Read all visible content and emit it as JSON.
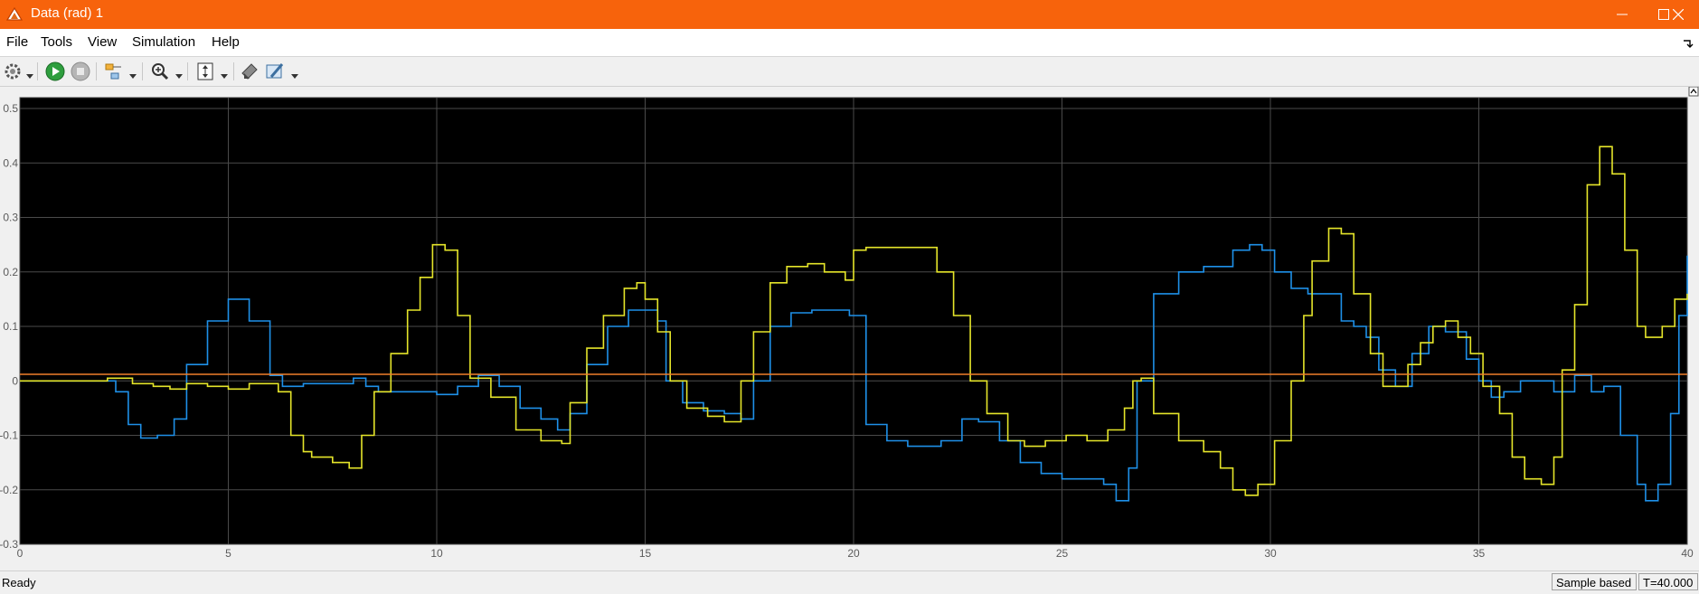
{
  "window": {
    "title": "Data (rad) 1"
  },
  "menu": {
    "items": [
      "File",
      "Tools",
      "View",
      "Simulation",
      "Help"
    ]
  },
  "toolbar": {
    "icons": [
      "gear-icon",
      "run-icon",
      "stop-icon",
      "signal-select-icon",
      "zoom-icon",
      "autoscale-icon",
      "layout-icon",
      "highlight-icon"
    ]
  },
  "status": {
    "ready": "Ready",
    "mode": "Sample based",
    "time": "T=40.000"
  },
  "colors": {
    "titlebar": "#f7630c",
    "plot_bg": "#000000",
    "grid": "#4a4a4a",
    "series1": "#1e90e8",
    "series2": "#e5e52a",
    "series3": "#f07f2a"
  },
  "chart_data": {
    "type": "line",
    "title": "",
    "xlabel": "",
    "ylabel": "",
    "xlim": [
      0,
      40
    ],
    "ylim": [
      -0.3,
      0.52
    ],
    "xticks": [
      0,
      5,
      10,
      15,
      20,
      25,
      30,
      35,
      40
    ],
    "yticks": [
      -0.3,
      -0.2,
      -0.1,
      0,
      0.1,
      0.2,
      0.3,
      0.4,
      0.5
    ],
    "xtick_labels": [
      "0",
      "5",
      "10",
      "15",
      "20",
      "25",
      "30",
      "35",
      "40"
    ],
    "ytick_labels": [
      "-0.3",
      "-0.2",
      "-0.1",
      "0",
      "0.1",
      "0.2",
      "0.3",
      "0.4",
      "0.5"
    ],
    "grid": true,
    "step": true,
    "series": [
      {
        "color": "#1e90e8",
        "x": [
          0,
          1.5,
          2,
          2.3,
          2.6,
          2.9,
          3.3,
          3.5,
          3.7,
          4,
          4.5,
          5,
          5.5,
          6,
          6.3,
          6.8,
          7.3,
          7.7,
          8,
          8.3,
          8.6,
          9,
          9.5,
          10,
          10.5,
          11,
          11.5,
          12,
          12.5,
          12.9,
          13.2,
          13.6,
          14.1,
          14.6,
          15,
          15.3,
          15.5,
          15.9,
          16.4,
          16.9,
          17.3,
          17.6,
          18,
          18.5,
          19,
          19.5,
          19.9,
          20.3,
          20.8,
          21.3,
          21.7,
          22.1,
          22.6,
          23,
          23.5,
          24,
          24.5,
          25,
          25.5,
          26,
          26.3,
          26.6,
          26.8,
          27.2,
          27.8,
          28.4,
          29.1,
          29.5,
          29.8,
          30.1,
          30.5,
          30.9,
          31.2,
          31.7,
          32,
          32.3,
          32.6,
          33,
          33.4,
          33.8,
          34.2,
          34.7,
          35,
          35.3,
          35.6,
          36,
          36.4,
          36.8,
          37.3,
          37.7,
          38,
          38.4,
          38.8,
          39,
          39.3,
          39.6,
          39.8,
          40
        ],
        "y": [
          0,
          0,
          0,
          -0.02,
          -0.08,
          -0.105,
          -0.1,
          -0.1,
          -0.07,
          0.03,
          0.11,
          0.15,
          0.11,
          0.01,
          -0.01,
          -0.005,
          -0.005,
          -0.005,
          0.005,
          -0.01,
          -0.02,
          -0.02,
          -0.02,
          -0.025,
          -0.01,
          0.01,
          -0.01,
          -0.05,
          -0.07,
          -0.09,
          -0.06,
          0.03,
          0.1,
          0.13,
          0.13,
          0.11,
          0.0,
          -0.04,
          -0.055,
          -0.06,
          -0.07,
          0.0,
          0.1,
          0.125,
          0.13,
          0.13,
          0.12,
          -0.08,
          -0.11,
          -0.12,
          -0.12,
          -0.11,
          -0.07,
          -0.075,
          -0.11,
          -0.15,
          -0.17,
          -0.18,
          -0.18,
          -0.19,
          -0.22,
          -0.16,
          0.0,
          0.16,
          0.2,
          0.21,
          0.24,
          0.25,
          0.24,
          0.2,
          0.17,
          0.16,
          0.16,
          0.11,
          0.1,
          0.08,
          0.02,
          -0.01,
          0.05,
          0.1,
          0.09,
          0.04,
          0.0,
          -0.03,
          -0.02,
          0.0,
          0.0,
          -0.02,
          0.01,
          -0.02,
          -0.01,
          -0.1,
          -0.19,
          -0.22,
          -0.19,
          -0.06,
          0.12,
          0.23
        ]
      },
      {
        "color": "#e5e52a",
        "x": [
          0,
          1.5,
          2.1,
          2.4,
          2.7,
          3.2,
          3.6,
          4,
          4.5,
          5,
          5.5,
          5.9,
          6.2,
          6.5,
          6.8,
          7,
          7.5,
          7.9,
          8.2,
          8.5,
          8.9,
          9.3,
          9.6,
          9.9,
          10.2,
          10.5,
          10.8,
          11.3,
          11.9,
          12.5,
          13,
          13.2,
          13.6,
          14,
          14.5,
          14.8,
          15,
          15.3,
          15.6,
          16,
          16.5,
          16.9,
          17.3,
          17.6,
          18,
          18.4,
          18.9,
          19.3,
          19.8,
          20,
          20.3,
          21,
          21.6,
          22,
          22.4,
          22.8,
          23.2,
          23.7,
          24.1,
          24.6,
          25.1,
          25.6,
          26.1,
          26.5,
          26.7,
          26.9,
          27.2,
          27.8,
          28.4,
          28.8,
          29.1,
          29.4,
          29.7,
          30.1,
          30.5,
          30.8,
          31,
          31.4,
          31.7,
          32,
          32.4,
          32.7,
          33,
          33.3,
          33.6,
          33.9,
          34.2,
          34.5,
          34.8,
          35.1,
          35.5,
          35.8,
          36.1,
          36.5,
          36.8,
          37,
          37.3,
          37.6,
          37.9,
          38.2,
          38.5,
          38.8,
          39,
          39.4,
          39.7,
          40
        ],
        "y": [
          0,
          0,
          0.005,
          0.005,
          -0.005,
          -0.01,
          -0.015,
          -0.005,
          -0.01,
          -0.015,
          -0.005,
          -0.005,
          -0.02,
          -0.1,
          -0.13,
          -0.14,
          -0.15,
          -0.16,
          -0.1,
          -0.02,
          0.05,
          0.13,
          0.19,
          0.25,
          0.24,
          0.12,
          0.005,
          -0.03,
          -0.09,
          -0.11,
          -0.115,
          -0.04,
          0.06,
          0.12,
          0.17,
          0.18,
          0.15,
          0.09,
          0.0,
          -0.05,
          -0.065,
          -0.075,
          0.0,
          0.09,
          0.18,
          0.21,
          0.215,
          0.2,
          0.185,
          0.24,
          0.245,
          0.245,
          0.245,
          0.2,
          0.12,
          0.0,
          -0.06,
          -0.11,
          -0.12,
          -0.11,
          -0.1,
          -0.11,
          -0.09,
          -0.05,
          0.0,
          0.005,
          -0.06,
          -0.11,
          -0.13,
          -0.16,
          -0.2,
          -0.21,
          -0.19,
          -0.11,
          0.0,
          0.12,
          0.22,
          0.28,
          0.27,
          0.16,
          0.05,
          -0.01,
          -0.01,
          0.03,
          0.07,
          0.1,
          0.11,
          0.08,
          0.05,
          -0.01,
          -0.06,
          -0.14,
          -0.18,
          -0.19,
          -0.14,
          0.02,
          0.14,
          0.36,
          0.43,
          0.38,
          0.24,
          0.1,
          0.08,
          0.1,
          0.15,
          0.16
        ]
      },
      {
        "color": "#f07f2a",
        "x": [
          0,
          40
        ],
        "y": [
          0.012,
          0.012
        ]
      }
    ]
  }
}
